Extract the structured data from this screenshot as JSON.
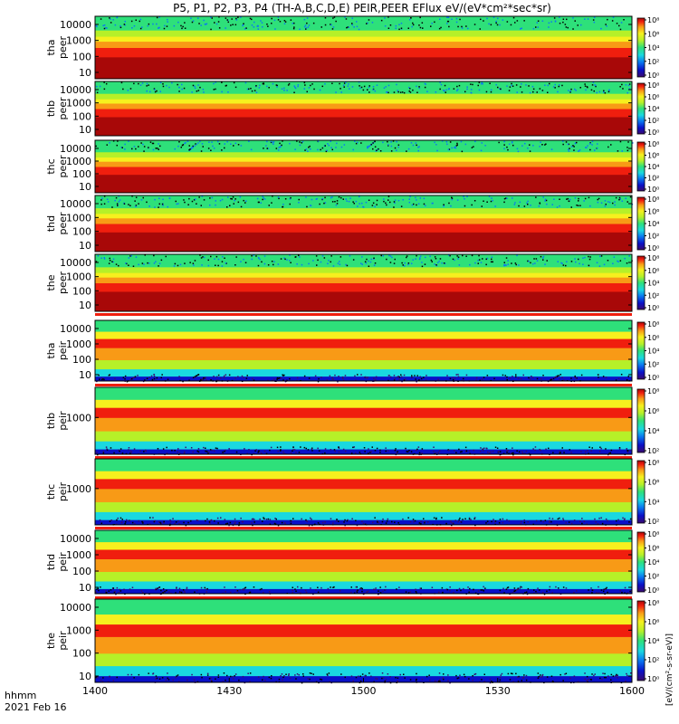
{
  "title": "P5, P1, P2, P3, P4 (TH-A,B,C,D,E) PEIR,PEER EFlux eV/(eV*cm²*sec*sr)",
  "colorbar_unit": "[eV/(cm²-s-sr-eV)]",
  "footer": {
    "line1": "hhmm",
    "line2": "2021 Feb 16"
  },
  "palette": [
    "#3a0a6e",
    "#0a10c8",
    "#0a78f0",
    "#1ad8e0",
    "#2ee07a",
    "#b6f028",
    "#f6f01e",
    "#f89a16",
    "#f01e0e",
    "#a80808"
  ],
  "chart_data": {
    "type": "heatmap",
    "x_axis": {
      "ticks": [
        "1400",
        "1430",
        "1500",
        "1530",
        "1600"
      ],
      "range": [
        "14:00",
        "16:00"
      ]
    },
    "panels": [
      {
        "label": "tha\npeer",
        "species": "electron",
        "yscale": "log",
        "yticks": [
          "10",
          "100",
          "1000",
          "10000"
        ],
        "cbar_ticks": [
          "10⁰",
          "10²",
          "10⁴",
          "10⁶",
          "10⁸"
        ],
        "gap_after": false
      },
      {
        "label": "thb\npeer",
        "species": "electron",
        "yscale": "log",
        "yticks": [
          "10",
          "100",
          "1000",
          "10000"
        ],
        "cbar_ticks": [
          "10⁰",
          "10²",
          "10⁴",
          "10⁶",
          "10⁸"
        ],
        "gap_after": false
      },
      {
        "label": "thc\npeer",
        "species": "electron",
        "yscale": "log",
        "yticks": [
          "10",
          "100",
          "1000",
          "10000"
        ],
        "cbar_ticks": [
          "10⁰",
          "10²",
          "10⁴",
          "10⁶",
          "10⁸"
        ],
        "gap_after": false
      },
      {
        "label": "thd\npeer",
        "species": "electron",
        "yscale": "log",
        "yticks": [
          "10",
          "100",
          "1000",
          "10000"
        ],
        "cbar_ticks": [
          "10⁰",
          "10²",
          "10⁴",
          "10⁶",
          "10⁸"
        ],
        "gap_after": false
      },
      {
        "label": "the\npeer",
        "species": "electron",
        "yscale": "log",
        "yticks": [
          "10",
          "100",
          "1000",
          "10000"
        ],
        "cbar_ticks": [
          "10⁰",
          "10²",
          "10⁴",
          "10⁶",
          "10⁸"
        ],
        "gap_after": true
      },
      {
        "label": "tha\npeir",
        "species": "ion",
        "yscale": "log",
        "yticks": [
          "10",
          "100",
          "1000",
          "10000"
        ],
        "cbar_ticks": [
          "10⁰",
          "10²",
          "10⁴",
          "10⁶",
          "10⁸"
        ],
        "gap_after": true
      },
      {
        "label": "thb\npeir",
        "species": "ion",
        "yscale": "log",
        "yticks": [
          "1000"
        ],
        "cbar_ticks": [
          "10²",
          "10⁴",
          "10⁶",
          "10⁸"
        ],
        "gap_after": true
      },
      {
        "label": "thc\npeir",
        "species": "ion",
        "yscale": "log",
        "yticks": [
          "1000"
        ],
        "cbar_ticks": [
          "10²",
          "10⁴",
          "10⁶",
          "10⁸"
        ],
        "gap_after": true
      },
      {
        "label": "thd\npeir",
        "species": "ion",
        "yscale": "log",
        "yticks": [
          "10",
          "100",
          "1000",
          "10000"
        ],
        "cbar_ticks": [
          "10⁰",
          "10²",
          "10⁴",
          "10⁶",
          "10⁸"
        ],
        "gap_after": true
      },
      {
        "label": "the\npeir",
        "species": "ion",
        "yscale": "log",
        "yticks": [
          "10",
          "100",
          "1000",
          "10000"
        ],
        "cbar_ticks": [
          "10⁰",
          "10²",
          "10⁴",
          "10⁶",
          "10⁸"
        ],
        "gap_after": false
      }
    ]
  }
}
